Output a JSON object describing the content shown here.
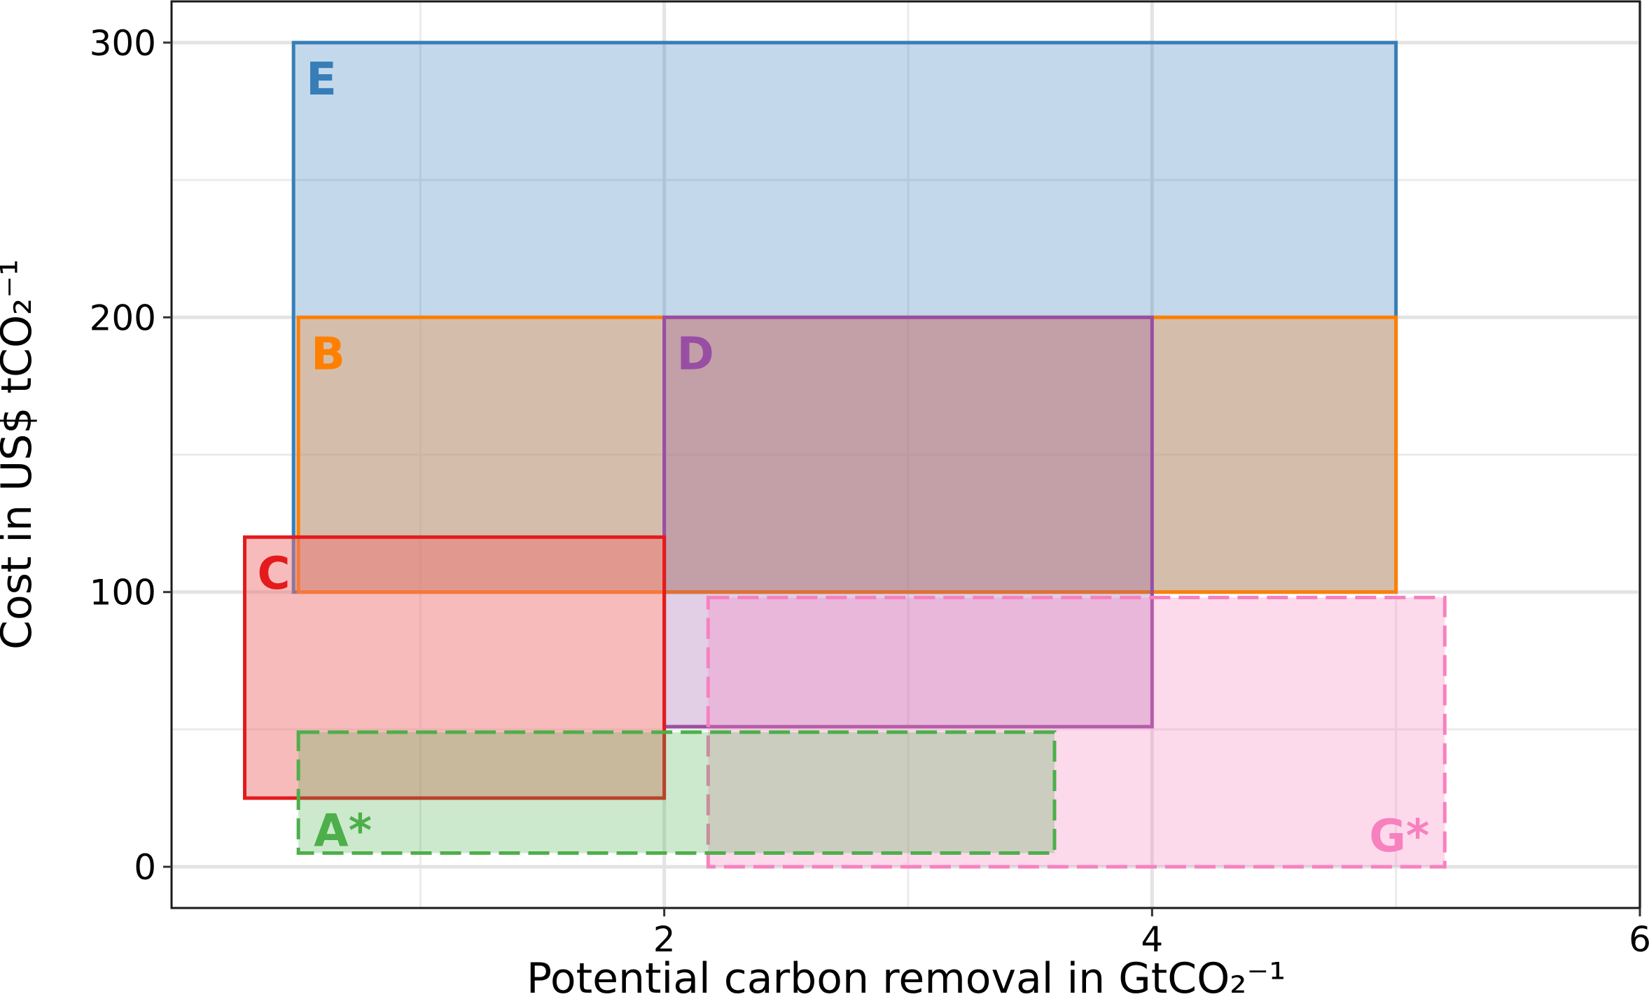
{
  "chart_data": {
    "type": "range-rectangles",
    "title": "",
    "xlabel": "Potential carbon removal in GtCO₂⁻¹",
    "ylabel": "Cost in US$ tCO₂⁻¹",
    "xlim": [
      -0.02,
      6.0
    ],
    "ylim": [
      -15,
      315
    ],
    "x_ticks": [
      2,
      4,
      6
    ],
    "x_tick_labels": [
      "2",
      "4",
      "6"
    ],
    "x_minor_grid": [
      1,
      3,
      5
    ],
    "y_ticks": [
      0,
      100,
      200,
      300
    ],
    "y_tick_labels": [
      "0",
      "100",
      "200",
      "300"
    ],
    "y_minor_grid": [
      50,
      150,
      250
    ],
    "grid": true,
    "legend": "none",
    "series": [
      {
        "name": "E",
        "x": [
          0.48,
          5.0
        ],
        "y": [
          100,
          300
        ],
        "color": "#377eb8",
        "fill": "#377eb8",
        "fill_opacity": 0.3,
        "dashed": false,
        "label_anchor": "top-left"
      },
      {
        "name": "B",
        "x": [
          0.5,
          5.0
        ],
        "y": [
          100,
          200
        ],
        "color": "#ff7f00",
        "fill": "#e8a060",
        "fill_opacity": 0.45,
        "dashed": false,
        "label_anchor": "top-left"
      },
      {
        "name": "D",
        "x": [
          2.0,
          4.0
        ],
        "y": [
          51,
          200
        ],
        "color": "#984ea3",
        "fill": "#984ea3",
        "fill_opacity": 0.28,
        "dashed": false,
        "label_anchor": "top-left"
      },
      {
        "name": "C",
        "x": [
          0.28,
          2.0
        ],
        "y": [
          25,
          120
        ],
        "color": "#e41a1c",
        "fill": "#f07070",
        "fill_opacity": 0.48,
        "dashed": false,
        "label_anchor": "top-left"
      },
      {
        "name": "G*",
        "x": [
          2.18,
          5.2
        ],
        "y": [
          0,
          98
        ],
        "color": "#f781bf",
        "fill": "#f781bf",
        "fill_opacity": 0.3,
        "dashed": true,
        "label_anchor": "bottom-right"
      },
      {
        "name": "A*",
        "x": [
          0.5,
          3.6
        ],
        "y": [
          5,
          49
        ],
        "color": "#4daf4a",
        "fill": "#4daf4a",
        "fill_opacity": 0.28,
        "dashed": true,
        "label_anchor": "bottom-left"
      }
    ]
  }
}
